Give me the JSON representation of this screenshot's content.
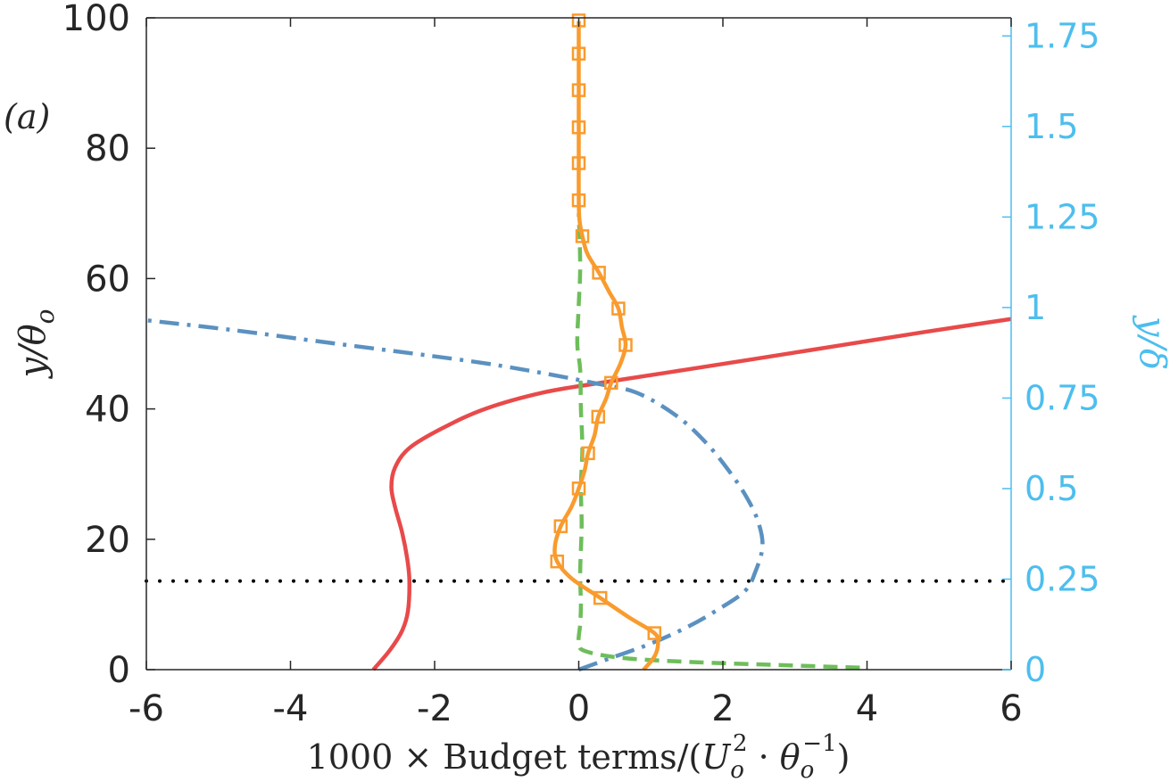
{
  "chart_data": {
    "type": "line",
    "panel_label": "(a)",
    "xlabel_prefix": "1000 × Budget terms/(",
    "xlabel_U": "U",
    "xlabel_U_sub": "o",
    "xlabel_U_sup": "2",
    "xlabel_dot": " · ",
    "xlabel_theta": "θ",
    "xlabel_theta_sub": "o",
    "xlabel_theta_sup": "−1",
    "xlabel_close": ")",
    "ylabel_main": "y/θ",
    "ylabel_sub": "o",
    "ylabel_right": "y/δ",
    "xlim": [
      -6,
      6
    ],
    "ylim": [
      0,
      100
    ],
    "ylim_right": [
      0,
      1.8
    ],
    "xticks": [
      "-6",
      "-4",
      "-2",
      "0",
      "2",
      "4",
      "6"
    ],
    "yticks": [
      "0",
      "20",
      "40",
      "60",
      "80",
      "100"
    ],
    "yticks_right": [
      "0",
      "0.25",
      "0.5",
      "0.75",
      "1",
      "1.25",
      "1.5",
      "1.75"
    ],
    "reference_line_y": 13.6,
    "colors": {
      "red": "#E84A4A",
      "blue": "#5B91C0",
      "green": "#6DBE5A",
      "orange": "#F99B2E",
      "right_axis": "#4DBEEE",
      "axis": "#262626"
    },
    "series": [
      {
        "style": "solid-red",
        "points": [
          [
            -2.85,
            0
          ],
          [
            -2.62,
            3
          ],
          [
            -2.45,
            6
          ],
          [
            -2.37,
            9
          ],
          [
            -2.35,
            13.6
          ],
          [
            -2.38,
            17
          ],
          [
            -2.45,
            21
          ],
          [
            -2.55,
            25
          ],
          [
            -2.6,
            28
          ],
          [
            -2.55,
            31
          ],
          [
            -2.35,
            34
          ],
          [
            -1.9,
            37
          ],
          [
            -1.3,
            40
          ],
          [
            -0.5,
            42.5
          ],
          [
            0.3,
            44
          ],
          [
            1.3,
            45.7
          ],
          [
            2.4,
            47.6
          ],
          [
            3.6,
            49.7
          ],
          [
            4.8,
            51.8
          ],
          [
            6,
            53.8
          ]
        ]
      },
      {
        "style": "dashdot-blue",
        "points": [
          [
            0,
            0
          ],
          [
            0.5,
            2
          ],
          [
            1,
            4
          ],
          [
            1.5,
            6.5
          ],
          [
            1.9,
            9
          ],
          [
            2.3,
            12
          ],
          [
            2.45,
            15
          ],
          [
            2.55,
            19
          ],
          [
            2.48,
            23
          ],
          [
            2.3,
            27
          ],
          [
            2.05,
            31
          ],
          [
            1.75,
            35
          ],
          [
            1.35,
            39
          ],
          [
            0.8,
            42.5
          ],
          [
            0.2,
            44
          ],
          [
            -0.5,
            45.5
          ],
          [
            -1.3,
            47
          ],
          [
            -2.3,
            48.5
          ],
          [
            -3.5,
            50.2
          ],
          [
            -4.8,
            52.1
          ],
          [
            -6,
            53.6
          ]
        ]
      },
      {
        "style": "dashed-green",
        "points": [
          [
            3.9,
            0.3
          ],
          [
            2.8,
            0.7
          ],
          [
            1.5,
            1.2
          ],
          [
            0.6,
            1.8
          ],
          [
            0.1,
            2.8
          ],
          [
            0,
            4
          ],
          [
            0.02,
            7
          ],
          [
            0.03,
            10
          ],
          [
            0.02,
            15
          ],
          [
            0.04,
            22
          ],
          [
            0.03,
            28
          ],
          [
            0.05,
            34
          ],
          [
            0.03,
            40
          ],
          [
            0.02,
            46
          ],
          [
            -0.02,
            50
          ],
          [
            0,
            56
          ],
          [
            0.02,
            62
          ],
          [
            0,
            70
          ]
        ]
      },
      {
        "style": "solid-orange-markers",
        "points": [
          [
            0.9,
            0
          ],
          [
            1.05,
            2
          ],
          [
            1.1,
            4
          ],
          [
            1.05,
            5.6
          ],
          [
            0.7,
            8
          ],
          [
            0.3,
            11
          ],
          [
            -0.1,
            14
          ],
          [
            -0.3,
            16.6
          ],
          [
            -0.33,
            19
          ],
          [
            -0.25,
            22
          ],
          [
            -0.1,
            25
          ],
          [
            0,
            27.8
          ],
          [
            0.08,
            30.5
          ],
          [
            0.13,
            33.2
          ],
          [
            0.22,
            36
          ],
          [
            0.27,
            38.8
          ],
          [
            0.38,
            41.6
          ],
          [
            0.45,
            44
          ],
          [
            0.58,
            47
          ],
          [
            0.65,
            49.8
          ],
          [
            0.6,
            52.5
          ],
          [
            0.55,
            55.4
          ],
          [
            0.42,
            58
          ],
          [
            0.28,
            60.9
          ],
          [
            0.12,
            63.8
          ],
          [
            0.05,
            66.5
          ],
          [
            0.01,
            69
          ],
          [
            0,
            72
          ],
          [
            0,
            78
          ],
          [
            0,
            83
          ],
          [
            0,
            89
          ],
          [
            0,
            94.5
          ],
          [
            0,
            99.5
          ]
        ],
        "markers": [
          [
            1.05,
            5.6
          ],
          [
            0.3,
            11
          ],
          [
            -0.3,
            16.6
          ],
          [
            -0.25,
            22
          ],
          [
            0,
            27.8
          ],
          [
            0.13,
            33.2
          ],
          [
            0.27,
            38.8
          ],
          [
            0.45,
            44
          ],
          [
            0.65,
            49.8
          ],
          [
            0.55,
            55.4
          ],
          [
            0.28,
            60.9
          ],
          [
            0.05,
            66.5
          ],
          [
            0,
            72
          ],
          [
            0,
            77.7
          ],
          [
            0,
            83.2
          ],
          [
            0,
            88.9
          ],
          [
            0,
            94.5
          ],
          [
            0,
            99.6
          ]
        ]
      }
    ]
  }
}
